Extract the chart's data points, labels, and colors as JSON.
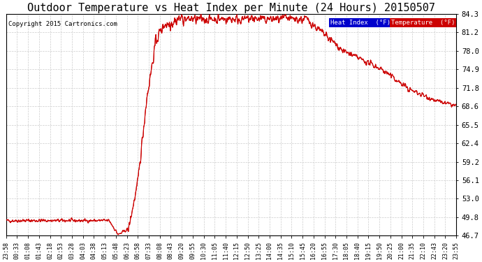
{
  "title": "Outdoor Temperature vs Heat Index per Minute (24 Hours) 20150507",
  "copyright": "Copyright 2015 Cartronics.com",
  "legend_heat": "Heat Index  (°F)",
  "legend_temp": "Temperature  (°F)",
  "legend_heat_bg": "#0000cc",
  "legend_temp_bg": "#cc0000",
  "line_color": "#cc0000",
  "background_color": "#ffffff",
  "plot_bg": "#ffffff",
  "yticks": [
    46.7,
    49.8,
    53.0,
    56.1,
    59.2,
    62.4,
    65.5,
    68.6,
    71.8,
    74.9,
    78.0,
    81.2,
    84.3
  ],
  "ylim": [
    46.7,
    84.3
  ],
  "title_fontsize": 11,
  "copyright_fontsize": 6.5,
  "grid_color": "#cccccc",
  "xtick_labels": [
    "23:58",
    "00:33",
    "01:08",
    "01:43",
    "02:18",
    "02:53",
    "03:28",
    "04:03",
    "04:38",
    "05:13",
    "05:48",
    "06:23",
    "06:58",
    "07:33",
    "08:08",
    "08:43",
    "09:20",
    "09:55",
    "10:30",
    "11:05",
    "11:40",
    "12:15",
    "12:50",
    "13:25",
    "14:00",
    "14:35",
    "15:10",
    "15:45",
    "16:20",
    "16:55",
    "17:30",
    "18:05",
    "18:40",
    "19:15",
    "19:50",
    "20:25",
    "21:00",
    "21:35",
    "22:10",
    "22:43",
    "23:20",
    "23:55"
  ]
}
